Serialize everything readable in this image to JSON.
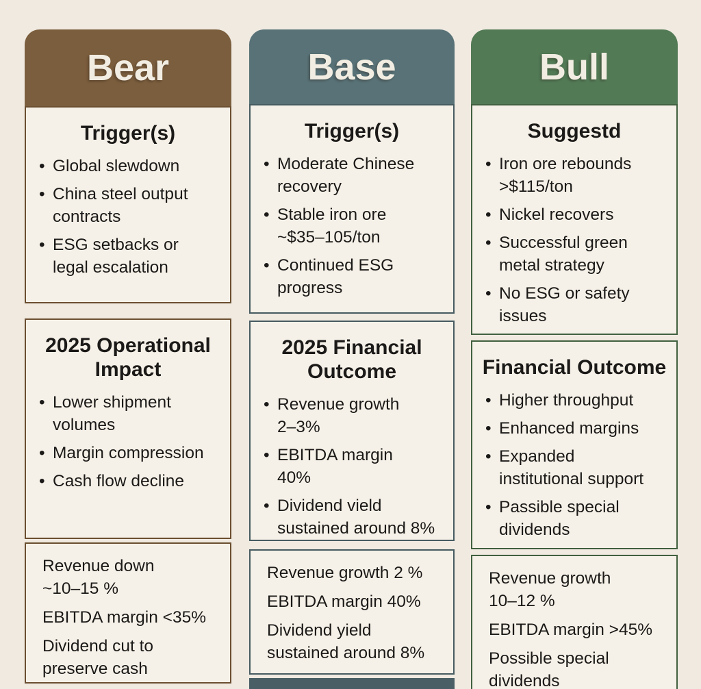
{
  "board": {
    "background": "#f0eae1",
    "columns": [
      {
        "title": "Bear",
        "theme": {
          "header_bg": "#7b5e3d",
          "border": "#6b4f30",
          "panel_bg": "#f6f1e8"
        },
        "sections": [
          {
            "title": "Trigger(s)",
            "bullets": [
              "Global slewdown",
              "China steel output\ncontracts",
              "ESG setbacks or\nlegal escalation"
            ]
          },
          {
            "title": "2025 Operational\nImpact",
            "bullets": [
              "Lower shipment\nvolumes",
              "Margin compression",
              "Cash flow decline"
            ]
          },
          {
            "lines": [
              "Revenue down\n~10–15 %",
              "EBITDA margin <35%",
              "Dividend cut to\npreserve cash"
            ]
          }
        ]
      },
      {
        "title": "Base",
        "theme": {
          "header_bg": "#587277",
          "border": "#465b60",
          "panel_bg": "#f6f1e8",
          "footer_bg": "#4a5f65"
        },
        "sections": [
          {
            "title": "Trigger(s)",
            "bullets": [
              "Moderate Chinese\nrecovery",
              "Stable iron ore\n~$35–105/ton",
              "Continued ESG\nprogress"
            ]
          },
          {
            "title": "2025 Financial\nOutcome",
            "bullets": [
              "Revenue growth\n2–3%",
              "EBITDA margin\n40%",
              "Dividend vield\nsustained around 8%"
            ]
          },
          {
            "lines": [
              "Revenue growth 2 %",
              "EBITDA margin 40%",
              "Dividend yield\nsustained around 8%"
            ]
          }
        ]
      },
      {
        "title": "Bull",
        "theme": {
          "header_bg": "#527a55",
          "border": "#41603f",
          "panel_bg": "#f6f1e8"
        },
        "sections": [
          {
            "title": "Suggestd",
            "bullets": [
              "Iron ore rebounds\n>$115/ton",
              "Nickel recovers",
              "Successful green\nmetal strategy",
              "No ESG or safety\nissues"
            ]
          },
          {
            "title": "Financial Outcome",
            "bullets": [
              "Higher throughput",
              "Enhanced margins",
              "Expanded\ninstitutional support",
              "Passible special\ndividends"
            ]
          },
          {
            "lines": [
              "Revenue growth\n10–12 %",
              "EBITDA margin >45%",
              "Possible special\ndividends"
            ]
          }
        ]
      }
    ]
  }
}
